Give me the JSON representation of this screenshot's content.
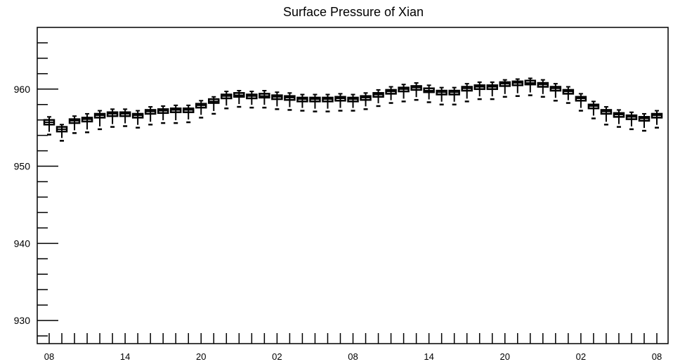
{
  "chart_data": {
    "type": "box",
    "title": "Surface Pressure of Xian",
    "xlabel": "",
    "ylabel": "",
    "ylim": [
      927,
      968
    ],
    "y_ticks": [
      930,
      940,
      950,
      960
    ],
    "x_ticks": [
      "08",
      "14",
      "20",
      "02",
      "08",
      "14",
      "20",
      "02",
      "08"
    ],
    "x_tick_positions": [
      0,
      6,
      12,
      18,
      24,
      30,
      36,
      42,
      48
    ],
    "series": [
      {
        "values": [
          {
            "x": 0,
            "min": 954.1,
            "q1": 955.4,
            "median": 955.7,
            "q3": 956.0,
            "max": 956.4
          },
          {
            "x": 1,
            "min": 953.3,
            "q1": 954.5,
            "median": 954.8,
            "q3": 955.1,
            "max": 955.4
          },
          {
            "x": 2,
            "min": 954.3,
            "q1": 955.6,
            "median": 955.9,
            "q3": 956.1,
            "max": 956.5
          },
          {
            "x": 3,
            "min": 954.4,
            "q1": 955.8,
            "median": 956.1,
            "q3": 956.3,
            "max": 956.8
          },
          {
            "x": 4,
            "min": 954.8,
            "q1": 956.3,
            "median": 956.6,
            "q3": 956.8,
            "max": 957.2
          },
          {
            "x": 5,
            "min": 955.1,
            "q1": 956.5,
            "median": 956.8,
            "q3": 957.0,
            "max": 957.4
          },
          {
            "x": 6,
            "min": 955.2,
            "q1": 956.5,
            "median": 956.8,
            "q3": 957.0,
            "max": 957.4
          },
          {
            "x": 7,
            "min": 955.0,
            "q1": 956.3,
            "median": 956.6,
            "q3": 956.8,
            "max": 957.2
          },
          {
            "x": 8,
            "min": 955.4,
            "q1": 956.8,
            "median": 957.1,
            "q3": 957.3,
            "max": 957.7
          },
          {
            "x": 9,
            "min": 955.6,
            "q1": 956.9,
            "median": 957.2,
            "q3": 957.4,
            "max": 957.8
          },
          {
            "x": 10,
            "min": 955.6,
            "q1": 957.0,
            "median": 957.3,
            "q3": 957.5,
            "max": 957.9
          },
          {
            "x": 11,
            "min": 955.7,
            "q1": 957.0,
            "median": 957.3,
            "q3": 957.5,
            "max": 957.9
          },
          {
            "x": 12,
            "min": 956.3,
            "q1": 957.6,
            "median": 957.9,
            "q3": 958.1,
            "max": 958.5
          },
          {
            "x": 13,
            "min": 956.8,
            "q1": 958.2,
            "median": 958.4,
            "q3": 958.7,
            "max": 959.0
          },
          {
            "x": 14,
            "min": 957.5,
            "q1": 958.8,
            "median": 959.1,
            "q3": 959.3,
            "max": 959.7
          },
          {
            "x": 15,
            "min": 957.7,
            "q1": 959.0,
            "median": 959.2,
            "q3": 959.5,
            "max": 959.8
          },
          {
            "x": 16,
            "min": 957.6,
            "q1": 958.8,
            "median": 959.1,
            "q3": 959.3,
            "max": 959.7
          },
          {
            "x": 17,
            "min": 957.6,
            "q1": 958.9,
            "median": 959.1,
            "q3": 959.4,
            "max": 959.8
          },
          {
            "x": 18,
            "min": 957.4,
            "q1": 958.7,
            "median": 959.0,
            "q3": 959.2,
            "max": 959.6
          },
          {
            "x": 19,
            "min": 957.3,
            "q1": 958.6,
            "median": 958.9,
            "q3": 959.1,
            "max": 959.5
          },
          {
            "x": 20,
            "min": 957.2,
            "q1": 958.4,
            "median": 958.7,
            "q3": 958.9,
            "max": 959.3
          },
          {
            "x": 21,
            "min": 957.1,
            "q1": 958.4,
            "median": 958.7,
            "q3": 958.9,
            "max": 959.3
          },
          {
            "x": 22,
            "min": 957.1,
            "q1": 958.4,
            "median": 958.7,
            "q3": 958.9,
            "max": 959.3
          },
          {
            "x": 23,
            "min": 957.2,
            "q1": 958.5,
            "median": 958.8,
            "q3": 959.0,
            "max": 959.4
          },
          {
            "x": 24,
            "min": 957.2,
            "q1": 958.4,
            "median": 958.7,
            "q3": 958.9,
            "max": 959.3
          },
          {
            "x": 25,
            "min": 957.4,
            "q1": 958.6,
            "median": 958.9,
            "q3": 959.1,
            "max": 959.5
          },
          {
            "x": 26,
            "min": 957.8,
            "q1": 959.0,
            "median": 959.3,
            "q3": 959.5,
            "max": 959.9
          },
          {
            "x": 27,
            "min": 958.2,
            "q1": 959.4,
            "median": 959.7,
            "q3": 959.9,
            "max": 960.3
          },
          {
            "x": 28,
            "min": 958.4,
            "q1": 959.7,
            "median": 960.0,
            "q3": 960.2,
            "max": 960.6
          },
          {
            "x": 29,
            "min": 958.6,
            "q1": 959.9,
            "median": 960.2,
            "q3": 960.4,
            "max": 960.8
          },
          {
            "x": 30,
            "min": 958.3,
            "q1": 959.6,
            "median": 959.8,
            "q3": 960.1,
            "max": 960.5
          },
          {
            "x": 31,
            "min": 958.0,
            "q1": 959.3,
            "median": 959.6,
            "q3": 959.8,
            "max": 960.2
          },
          {
            "x": 32,
            "min": 958.0,
            "q1": 959.3,
            "median": 959.6,
            "q3": 959.8,
            "max": 960.2
          },
          {
            "x": 33,
            "min": 958.4,
            "q1": 959.8,
            "median": 960.1,
            "q3": 960.3,
            "max": 960.7
          },
          {
            "x": 34,
            "min": 958.7,
            "q1": 960.0,
            "median": 960.3,
            "q3": 960.5,
            "max": 960.9
          },
          {
            "x": 35,
            "min": 958.7,
            "q1": 960.0,
            "median": 960.3,
            "q3": 960.5,
            "max": 960.9
          },
          {
            "x": 36,
            "min": 959.0,
            "q1": 960.4,
            "median": 960.7,
            "q3": 960.9,
            "max": 961.2
          },
          {
            "x": 37,
            "min": 959.1,
            "q1": 960.5,
            "median": 960.8,
            "q3": 961.0,
            "max": 961.3
          },
          {
            "x": 38,
            "min": 959.2,
            "q1": 960.6,
            "median": 960.8,
            "q3": 961.1,
            "max": 961.4
          },
          {
            "x": 39,
            "min": 959.0,
            "q1": 960.3,
            "median": 960.6,
            "q3": 960.8,
            "max": 961.2
          },
          {
            "x": 40,
            "min": 958.5,
            "q1": 959.8,
            "median": 960.1,
            "q3": 960.3,
            "max": 960.7
          },
          {
            "x": 41,
            "min": 958.2,
            "q1": 959.4,
            "median": 959.7,
            "q3": 959.9,
            "max": 960.3
          },
          {
            "x": 42,
            "min": 957.2,
            "q1": 958.5,
            "median": 958.8,
            "q3": 959.0,
            "max": 959.4
          },
          {
            "x": 43,
            "min": 956.2,
            "q1": 957.5,
            "median": 957.8,
            "q3": 958.0,
            "max": 958.4
          },
          {
            "x": 44,
            "min": 955.4,
            "q1": 956.8,
            "median": 957.1,
            "q3": 957.3,
            "max": 957.7
          },
          {
            "x": 45,
            "min": 955.1,
            "q1": 956.4,
            "median": 956.7,
            "q3": 956.9,
            "max": 957.3
          },
          {
            "x": 46,
            "min": 954.8,
            "q1": 956.1,
            "median": 956.4,
            "q3": 956.6,
            "max": 957.0
          },
          {
            "x": 47,
            "min": 954.6,
            "q1": 955.9,
            "median": 956.2,
            "q3": 956.4,
            "max": 956.8
          },
          {
            "x": 48,
            "min": 955.0,
            "q1": 956.3,
            "median": 956.6,
            "q3": 956.8,
            "max": 957.2
          }
        ]
      }
    ],
    "grid": false,
    "legend": "none",
    "colors": {
      "box": "#000000",
      "background": "#ffffff"
    }
  }
}
